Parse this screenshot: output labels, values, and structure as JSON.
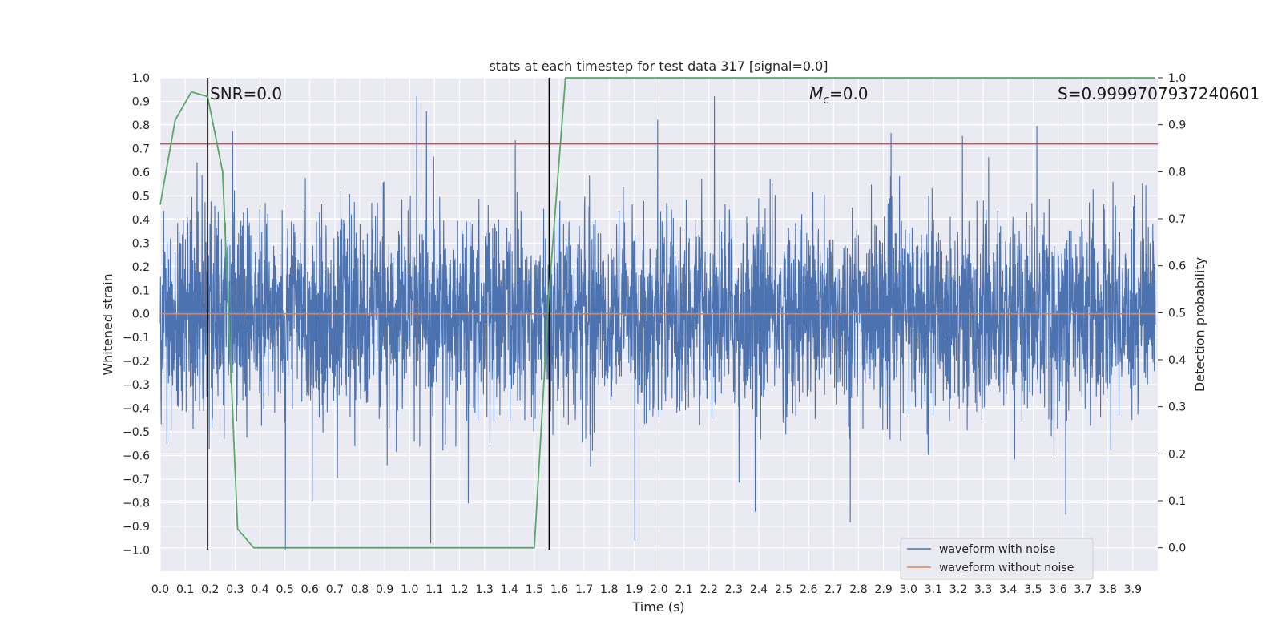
{
  "chart_data": {
    "type": "line",
    "title": "stats at each timestep for test data 317 [signal=0.0]",
    "xlabel": "Time (s)",
    "ylabel": "Whitened strain",
    "y2label": "Detection probability",
    "xlim": [
      0.0,
      4.0
    ],
    "ylim": [
      -1.09,
      1.0
    ],
    "y2lim": [
      -0.05,
      1.0
    ],
    "xticks": [
      "0.0",
      "0.1",
      "0.2",
      "0.3",
      "0.4",
      "0.5",
      "0.6",
      "0.7",
      "0.8",
      "0.9",
      "1.0",
      "1.1",
      "1.2",
      "1.3",
      "1.4",
      "1.5",
      "1.6",
      "1.7",
      "1.8",
      "1.9",
      "2.0",
      "2.1",
      "2.2",
      "2.3",
      "2.4",
      "2.5",
      "2.6",
      "2.7",
      "2.8",
      "2.9",
      "3.0",
      "3.1",
      "3.2",
      "3.3",
      "3.4",
      "3.5",
      "3.6",
      "3.7",
      "3.8",
      "3.9"
    ],
    "yticks": [
      "1.0",
      "0.9",
      "0.8",
      "0.7",
      "0.6",
      "0.5",
      "0.4",
      "0.3",
      "0.2",
      "0.1",
      "0.0",
      "−0.1",
      "−0.2",
      "−0.3",
      "−0.4",
      "−0.5",
      "−0.6",
      "−0.7",
      "−0.8",
      "−0.9",
      "−1.0"
    ],
    "y2ticks": [
      "1.0",
      "0.9",
      "0.8",
      "0.7",
      "0.6",
      "0.5",
      "0.4",
      "0.3",
      "0.2",
      "0.1",
      "0.0"
    ],
    "grid": true,
    "legend_position": "lower-right",
    "annotations": {
      "snr_text": "SNR=0.0",
      "mc_symbol": "M",
      "mc_subscript": "c",
      "mc_value": "=0.0",
      "s_text": "S=0.9999707937240601"
    },
    "series": [
      {
        "name": "waveform with noise",
        "color": "#4c72b0",
        "style": "noise",
        "x_range": [
          0.0,
          3.99
        ],
        "y_range": [
          -1.0,
          0.92
        ],
        "y_typical_band": [
          -0.5,
          0.6
        ]
      },
      {
        "name": "waveform without noise",
        "color": "#dd8452",
        "x": [
          0.0,
          3.99
        ],
        "y": [
          0.0,
          0.0
        ]
      }
    ],
    "detection_probability": {
      "color": "#55a868",
      "x": [
        0.0,
        0.06,
        0.125,
        0.19,
        0.25,
        0.31,
        0.375,
        0.44,
        1.0,
        1.5,
        1.56,
        1.625,
        3.99
      ],
      "y": [
        0.73,
        0.91,
        0.97,
        0.96,
        0.8,
        0.04,
        0.0,
        0.0,
        0.0,
        0.0,
        0.55,
        1.0,
        1.0
      ]
    },
    "threshold_line": {
      "color": "#c44e52",
      "y": 0.72
    },
    "vertical_markers": {
      "color": "#000000",
      "x": [
        0.19,
        1.56
      ]
    }
  }
}
